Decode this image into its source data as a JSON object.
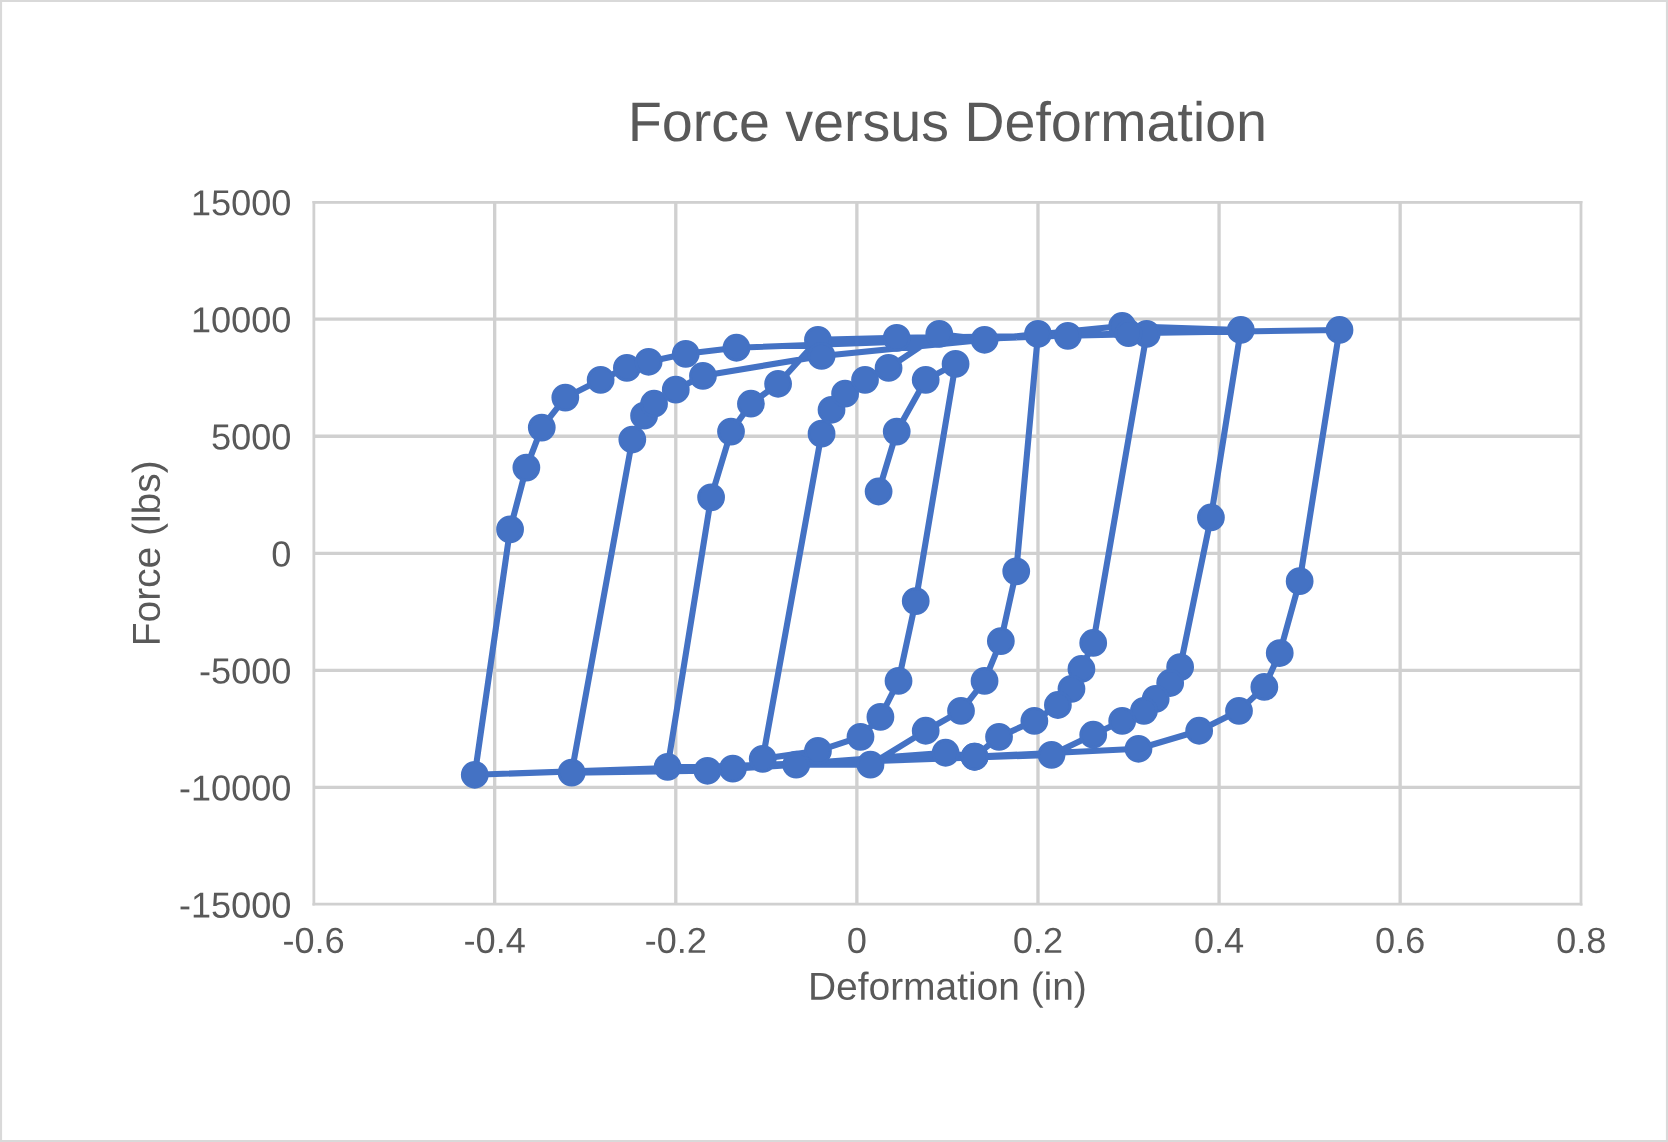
{
  "chart_data": {
    "type": "line",
    "title": "Force versus Deformation",
    "xlabel": "Deformation (in)",
    "ylabel": "Force (lbs)",
    "series": [
      {
        "color": "#4472c4",
        "x": [
          0.024,
          0.044,
          0.076,
          0.109,
          0.065,
          0.046,
          0.026,
          0.004,
          -0.043,
          -0.104,
          -0.039,
          -0.028,
          -0.013,
          0.009,
          0.035,
          0.091,
          0.141,
          0.2,
          0.176,
          0.159,
          0.141,
          0.115,
          0.076,
          0.015,
          -0.067,
          -0.137,
          -0.209,
          -0.161,
          -0.139,
          -0.117,
          -0.087,
          -0.043,
          0.044,
          0.233,
          0.32,
          0.261,
          0.248,
          0.237,
          0.222,
          0.196,
          0.157,
          0.13,
          0.098,
          -0.165,
          -0.315,
          -0.248,
          -0.235,
          -0.224,
          -0.2,
          -0.17,
          -0.039,
          0.293,
          0.424,
          0.391,
          0.357,
          0.346,
          0.33,
          0.317,
          0.293,
          0.261,
          0.215,
          -0.422,
          -0.383,
          -0.365,
          -0.348,
          -0.322,
          -0.283,
          -0.254,
          -0.23,
          -0.189,
          -0.133,
          0.3,
          0.533,
          0.489,
          0.467,
          0.45,
          0.422,
          0.378,
          0.311,
          0.13
        ],
        "values": [
          2640,
          5200,
          7410,
          8090,
          -2040,
          -5450,
          -6990,
          -7840,
          -8440,
          -8780,
          5110,
          6130,
          6820,
          7410,
          7920,
          9370,
          9120,
          9370,
          -770,
          -3750,
          -5450,
          -6730,
          -7580,
          -9030,
          -9030,
          -9200,
          -9120,
          2390,
          5200,
          6390,
          7240,
          9120,
          9200,
          9290,
          9370,
          -3830,
          -4940,
          -5790,
          -6480,
          -7160,
          -7840,
          -8690,
          -8520,
          -9290,
          -9370,
          4860,
          5880,
          6390,
          6990,
          7580,
          8430,
          9710,
          9540,
          1530,
          -4860,
          -5540,
          -6220,
          -6730,
          -7160,
          -7750,
          -8610,
          -9460,
          1020,
          3660,
          5370,
          6650,
          7410,
          7920,
          8180,
          8520,
          8780,
          9400,
          9540,
          -1190,
          -4260,
          -5710,
          -6730,
          -7580,
          -8350,
          -8690
        ]
      }
    ],
    "xlim": [
      -0.6,
      0.8
    ],
    "xticks": [
      -0.6,
      -0.4,
      -0.2,
      0,
      0.2,
      0.4,
      0.6,
      0.8
    ],
    "ylim": [
      -15000,
      15000
    ],
    "yticks": [
      -15000,
      -10000,
      -5000,
      0,
      5000,
      10000,
      15000
    ],
    "grid": true,
    "marker": "circle",
    "line_style": "solid"
  }
}
